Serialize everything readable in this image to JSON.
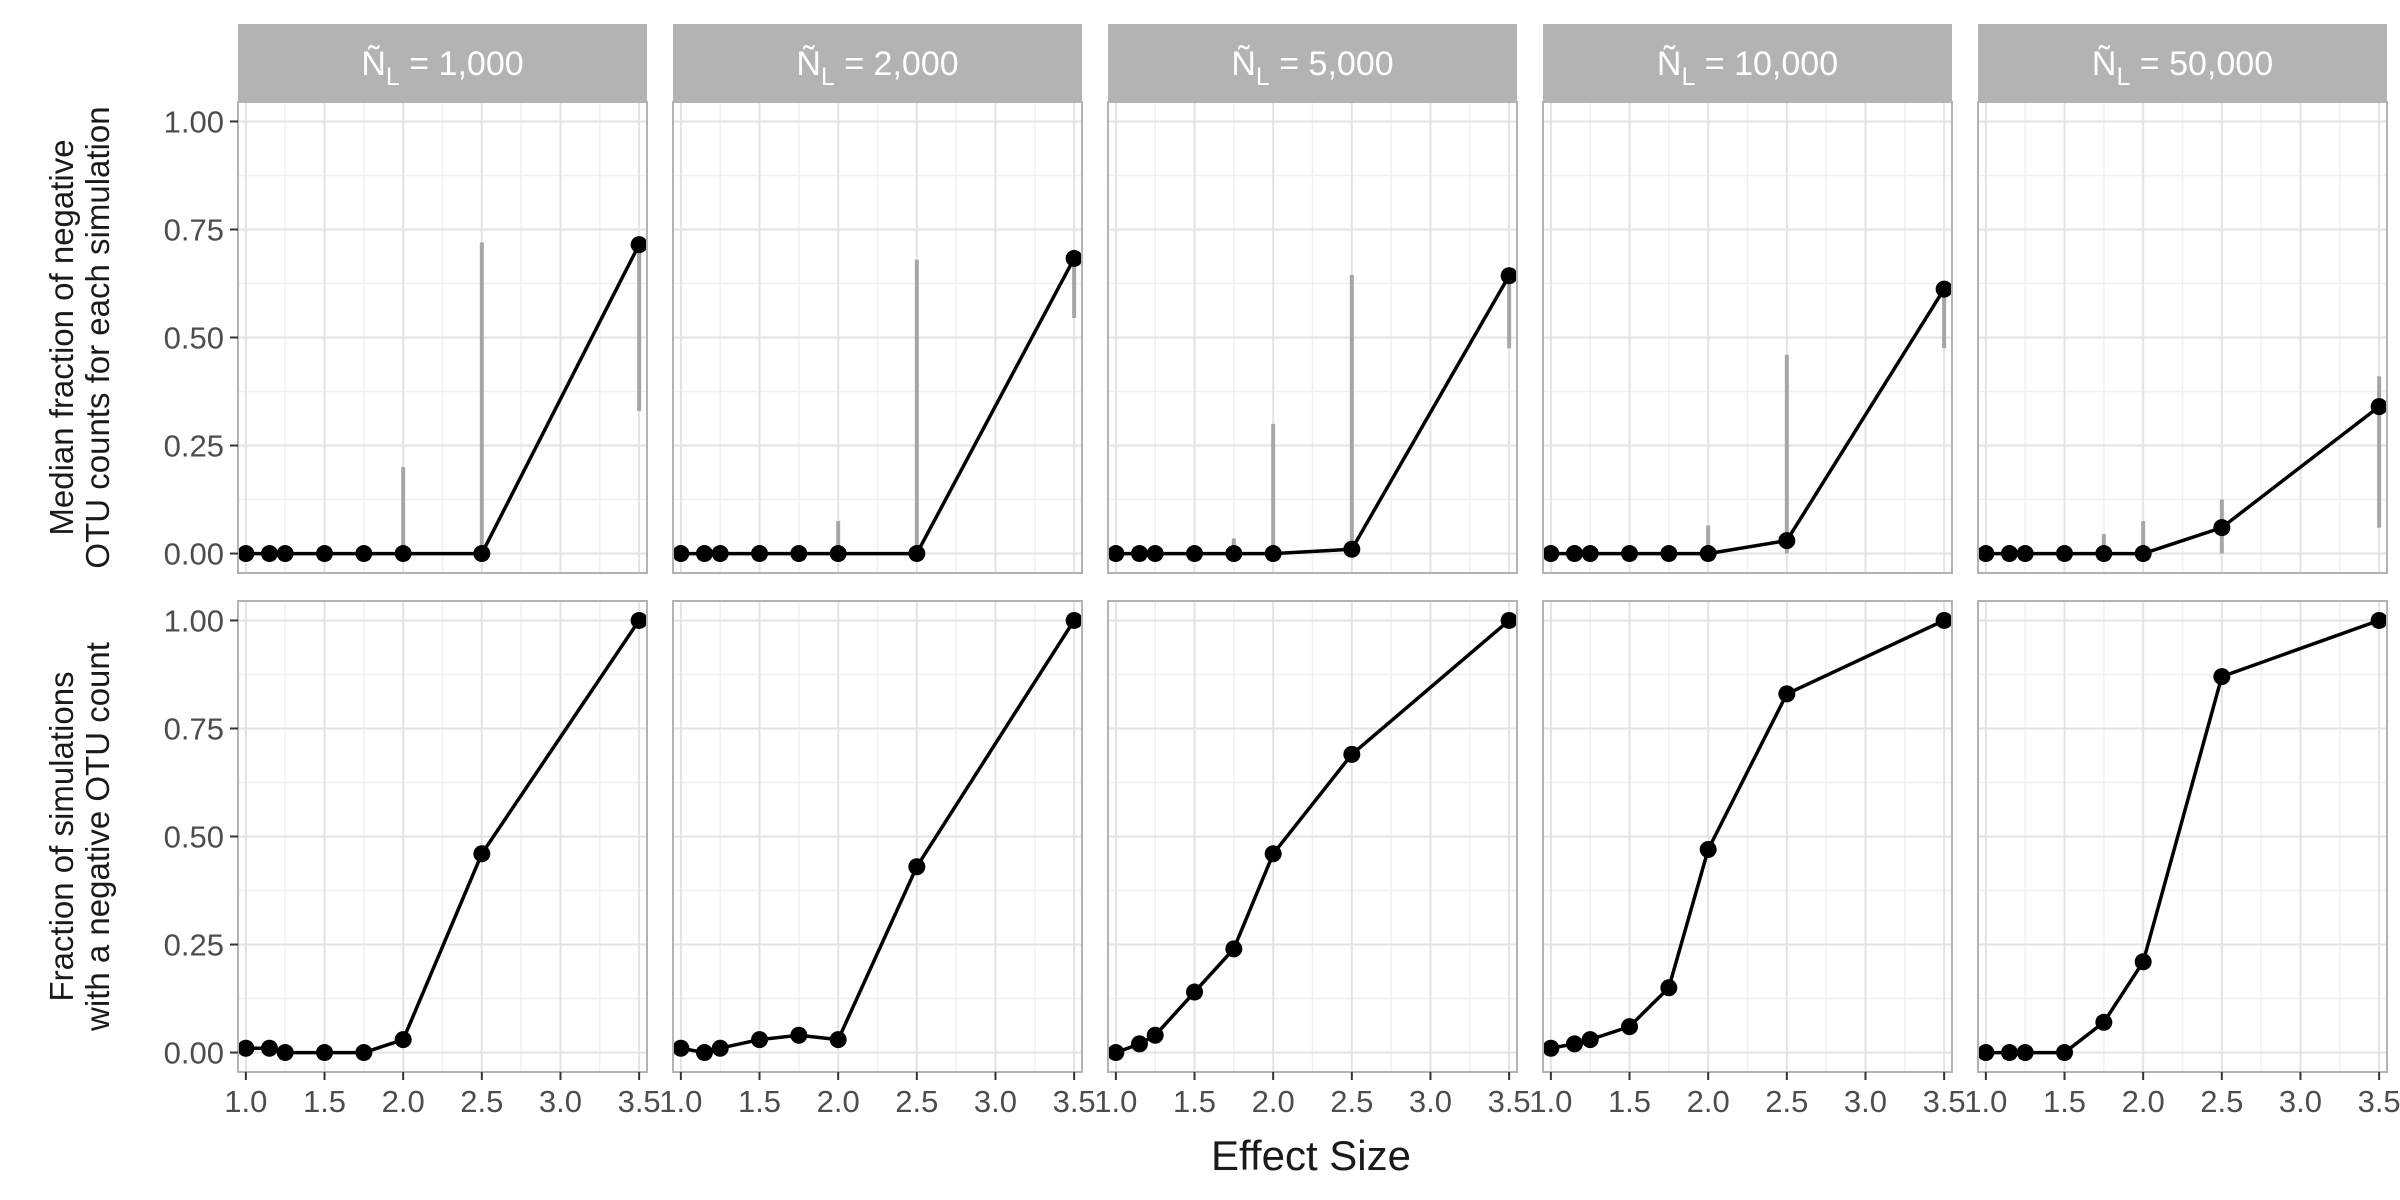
{
  "chart_data": {
    "type": "line",
    "xlabel": "Effect Size",
    "xlim": [
      0.95,
      3.55
    ],
    "x_ticks": [
      "1.0",
      "1.5",
      "2.0",
      "2.5",
      "3.0",
      "3.5"
    ],
    "x_tick_values": [
      1.0,
      1.5,
      2.0,
      2.5,
      3.0,
      3.5
    ],
    "y_ticks": [
      "0.00",
      "0.25",
      "0.50",
      "0.75",
      "1.00"
    ],
    "y_tick_values": [
      0,
      0.25,
      0.5,
      0.75,
      1.0
    ],
    "grid": true,
    "x": [
      1.0,
      1.15,
      1.25,
      1.5,
      1.75,
      2.0,
      2.5,
      3.5
    ],
    "facets": [
      {
        "n_label": "1,000"
      },
      {
        "n_label": "2,000"
      },
      {
        "n_label": "5,000"
      },
      {
        "n_label": "10,000"
      },
      {
        "n_label": "50,000"
      }
    ],
    "rows": [
      {
        "ylabel": [
          "Median fraction of negative",
          "OTU counts for each simulation"
        ],
        "ylim": [
          -0.045,
          1.045
        ],
        "series": [
          {
            "values": [
              0,
              0,
              0,
              0,
              0,
              0,
              0,
              0.715
            ],
            "error_bars": [
              [
                2.0,
                0,
                0.2
              ],
              [
                2.5,
                0,
                0.72
              ],
              [
                3.5,
                0.33,
                0.715
              ]
            ]
          },
          {
            "values": [
              0,
              0,
              0,
              0,
              0,
              0,
              0,
              0.683
            ],
            "error_bars": [
              [
                2.0,
                0,
                0.075
              ],
              [
                2.5,
                0,
                0.68
              ],
              [
                3.5,
                0.545,
                0.683
              ]
            ]
          },
          {
            "values": [
              0,
              0,
              0,
              0,
              0,
              0,
              0.01,
              0.643
            ],
            "error_bars": [
              [
                1.75,
                0,
                0.035
              ],
              [
                2.0,
                0,
                0.3
              ],
              [
                2.5,
                0,
                0.645
              ],
              [
                3.5,
                0.475,
                0.643
              ]
            ]
          },
          {
            "values": [
              0,
              0,
              0,
              0,
              0,
              0,
              0.03,
              0.612
            ],
            "error_bars": [
              [
                2.0,
                0,
                0.065
              ],
              [
                2.5,
                0,
                0.46
              ],
              [
                3.5,
                0.475,
                0.612
              ]
            ]
          },
          {
            "values": [
              0,
              0,
              0,
              0,
              0,
              0,
              0.06,
              0.34
            ],
            "error_bars": [
              [
                1.75,
                0,
                0.045
              ],
              [
                2.0,
                0,
                0.075
              ],
              [
                2.5,
                0,
                0.125
              ],
              [
                3.5,
                0.06,
                0.41
              ]
            ]
          }
        ]
      },
      {
        "ylabel": [
          "Fraction of simulations",
          "with a negative OTU count"
        ],
        "ylim": [
          -0.045,
          1.045
        ],
        "series": [
          {
            "values": [
              0.01,
              0.01,
              0,
              0,
              0,
              0.03,
              0.46,
              1.0
            ],
            "error_bars": []
          },
          {
            "values": [
              0.01,
              0,
              0.01,
              0.03,
              0.04,
              0.03,
              0.43,
              1.0
            ],
            "error_bars": []
          },
          {
            "values": [
              0,
              0.02,
              0.04,
              0.14,
              0.24,
              0.46,
              0.69,
              1.0
            ],
            "error_bars": []
          },
          {
            "values": [
              0.01,
              0.02,
              0.03,
              0.06,
              0.15,
              0.47,
              0.83,
              1.0
            ],
            "error_bars": []
          },
          {
            "values": [
              0,
              0,
              0,
              0,
              0.07,
              0.21,
              0.87,
              1.0
            ],
            "error_bars": []
          }
        ]
      }
    ]
  }
}
